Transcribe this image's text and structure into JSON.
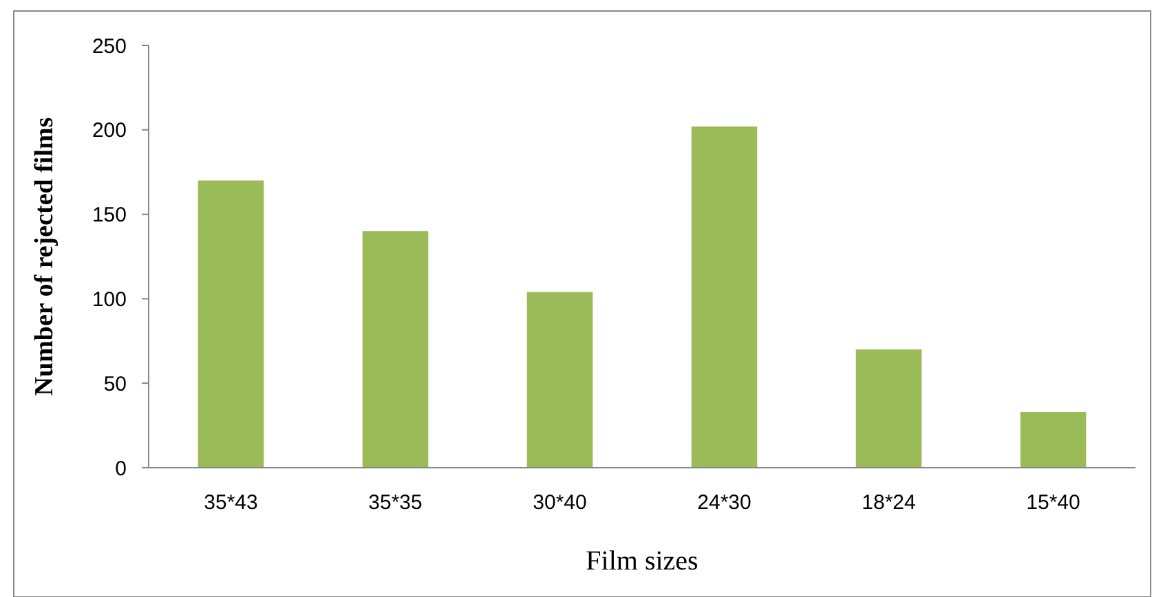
{
  "chart_data": {
    "type": "bar",
    "categories": [
      "35*43",
      "35*35",
      "30*40",
      "24*30",
      "18*24",
      "15*40"
    ],
    "values": [
      170,
      140,
      104,
      202,
      70,
      33
    ],
    "color": "#9bbb59",
    "xlabel": "Film sizes",
    "ylabel": "Number of rejected films",
    "ylim": [
      0,
      250
    ],
    "yticks": [
      0,
      50,
      100,
      150,
      200,
      250
    ],
    "grid": false
  }
}
